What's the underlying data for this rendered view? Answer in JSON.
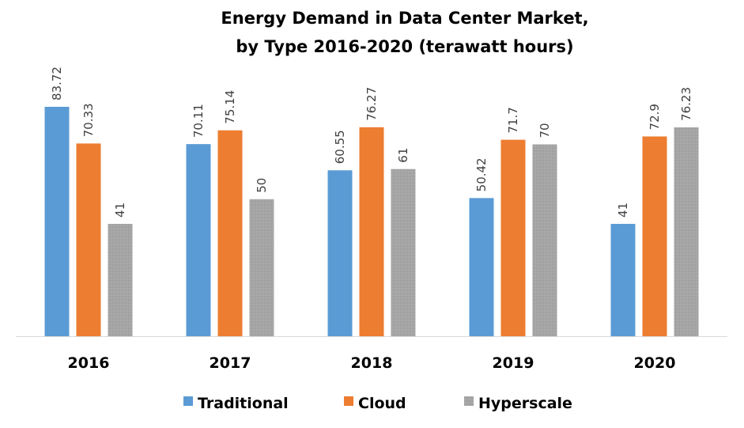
{
  "chart_data": {
    "type": "bar",
    "title": [
      "Energy Demand in Data Center Market,",
      "by Type 2016-2020 (terawatt hours)"
    ],
    "categories": [
      "2016",
      "2017",
      "2018",
      "2019",
      "2020"
    ],
    "series": [
      {
        "name": "Traditional",
        "color": "#5B9BD5",
        "values": [
          83.72,
          70.11,
          60.55,
          50.42,
          41
        ]
      },
      {
        "name": "Cloud",
        "color": "#ED7D31",
        "values": [
          70.33,
          75.14,
          76.27,
          71.7,
          72.9
        ]
      },
      {
        "name": "Hyperscale",
        "color": "#A5A5A5",
        "values": [
          41,
          50,
          61,
          70,
          76.23
        ]
      }
    ],
    "data_labels": [
      [
        "83.72",
        "70.11",
        "60.55",
        "50.42",
        "41"
      ],
      [
        "70.33",
        "75.14",
        "76.27",
        "71.7",
        "72.9"
      ],
      [
        "41",
        "50",
        "61",
        "70",
        "76.23"
      ]
    ],
    "ylim": [
      0,
      84
    ],
    "y_axis_visible": false,
    "grid": false,
    "legend": "bottom"
  }
}
